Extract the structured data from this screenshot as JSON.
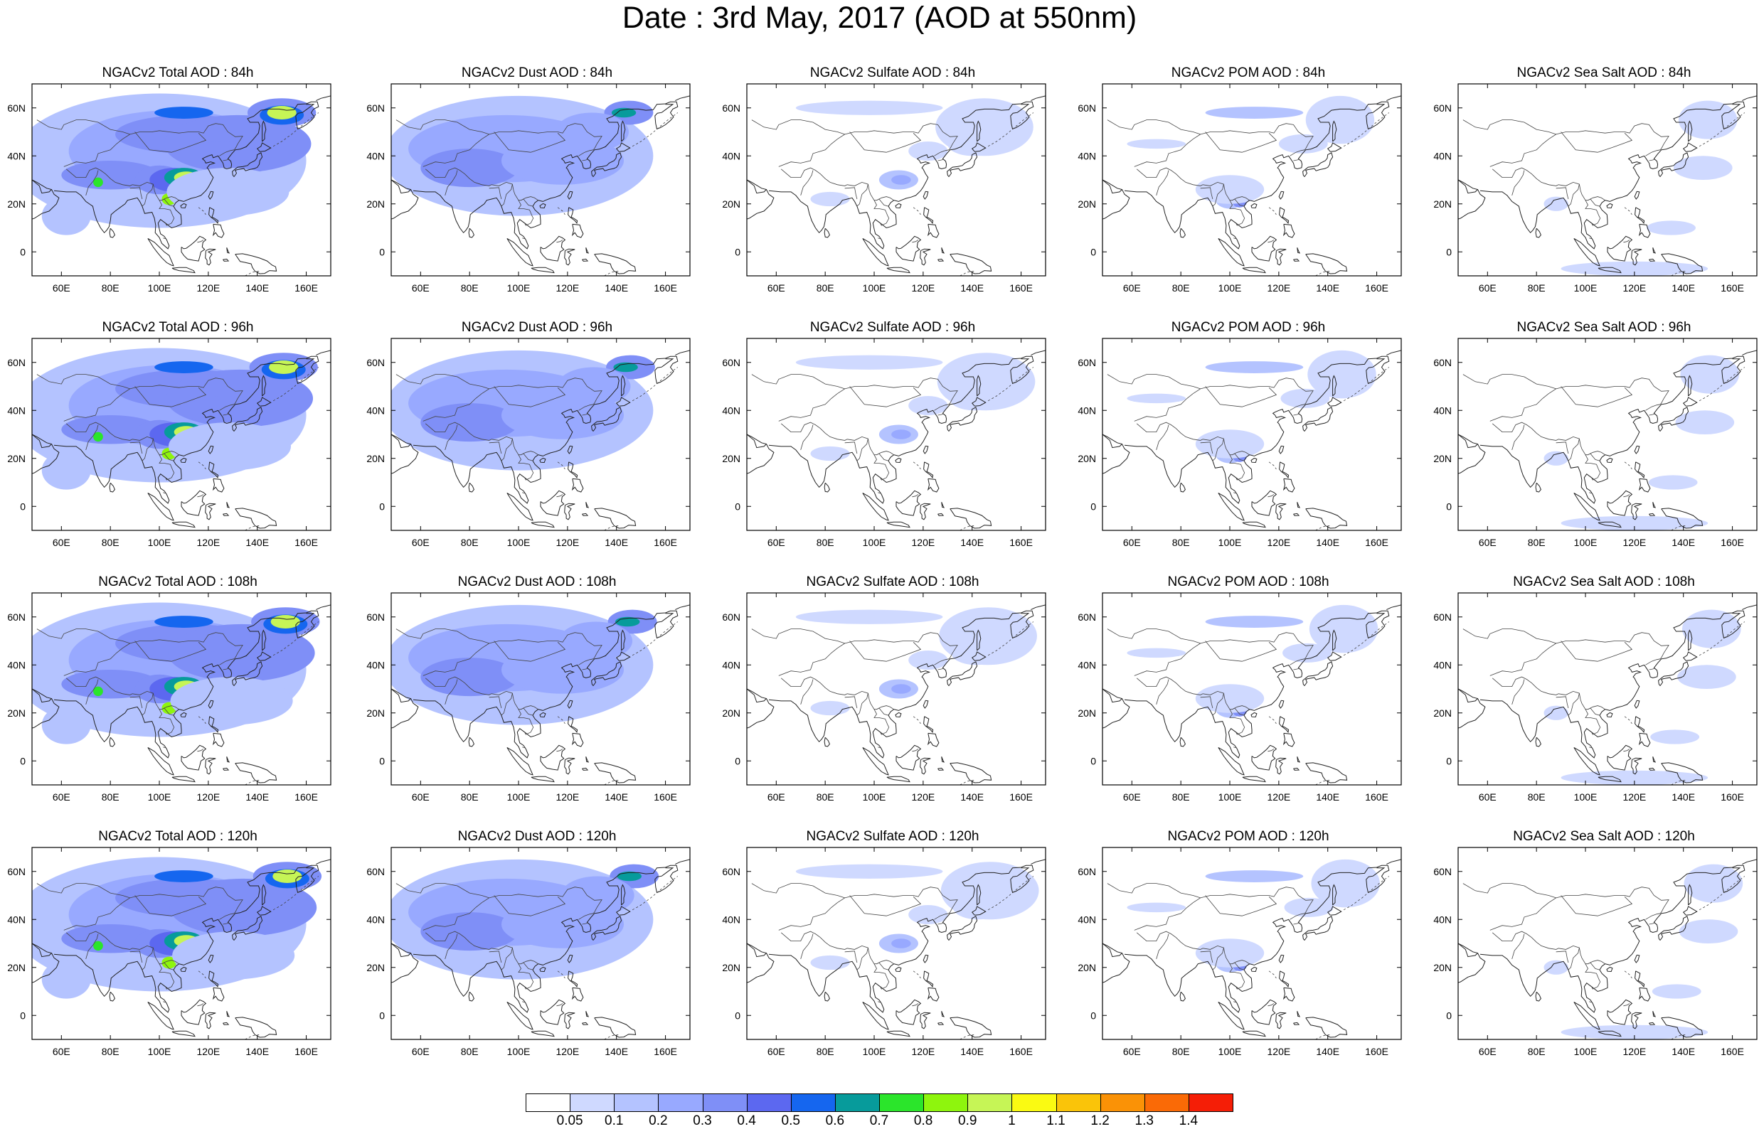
{
  "title": "Date : 3rd May, 2017 (AOD at 550nm)",
  "x_ticks": [
    "60E",
    "80E",
    "100E",
    "120E",
    "140E",
    "160E"
  ],
  "y_ticks": [
    "60N",
    "40N",
    "20N",
    "0"
  ],
  "panels": [
    [
      {
        "title": "NGACv2 Total AOD : 84h",
        "species": "total"
      },
      {
        "title": "NGACv2 Dust AOD : 84h",
        "species": "dust"
      },
      {
        "title": "NGACv2 Sulfate AOD : 84h",
        "species": "sulfate"
      },
      {
        "title": "NGACv2 POM AOD : 84h",
        "species": "pom"
      },
      {
        "title": "NGACv2 Sea Salt AOD : 84h",
        "species": "seasalt"
      }
    ],
    [
      {
        "title": "NGACv2 Total AOD : 96h",
        "species": "total"
      },
      {
        "title": "NGACv2 Dust AOD : 96h",
        "species": "dust"
      },
      {
        "title": "NGACv2 Sulfate AOD : 96h",
        "species": "sulfate"
      },
      {
        "title": "NGACv2 POM AOD : 96h",
        "species": "pom"
      },
      {
        "title": "NGACv2 Sea Salt AOD : 96h",
        "species": "seasalt"
      }
    ],
    [
      {
        "title": "NGACv2 Total AOD : 108h",
        "species": "total"
      },
      {
        "title": "NGACv2 Dust AOD : 108h",
        "species": "dust"
      },
      {
        "title": "NGACv2 Sulfate AOD : 108h",
        "species": "sulfate"
      },
      {
        "title": "NGACv2 POM AOD : 108h",
        "species": "pom"
      },
      {
        "title": "NGACv2 Sea Salt AOD : 108h",
        "species": "seasalt"
      }
    ],
    [
      {
        "title": "NGACv2 Total AOD : 120h",
        "species": "total"
      },
      {
        "title": "NGACv2 Dust AOD : 120h",
        "species": "dust"
      },
      {
        "title": "NGACv2 Sulfate AOD : 120h",
        "species": "sulfate"
      },
      {
        "title": "NGACv2 POM AOD : 120h",
        "species": "pom"
      },
      {
        "title": "NGACv2 Sea Salt  AOD : 120h",
        "species": "seasalt"
      }
    ]
  ],
  "colorbar": {
    "labels": [
      "0.05",
      "0.1",
      "0.2",
      "0.3",
      "0.4",
      "0.5",
      "0.6",
      "0.7",
      "0.8",
      "0.9",
      "1",
      "1.1",
      "1.2",
      "1.3",
      "1.4"
    ],
    "colors": [
      "#ffffff",
      "#cfd9ff",
      "#b4c3ff",
      "#98a9ff",
      "#7f8ff7",
      "#5c68f0",
      "#1566ef",
      "#079b9b",
      "#2be52b",
      "#8ef50d",
      "#c6f556",
      "#fafa12",
      "#fac409",
      "#fa9206",
      "#fa6a06",
      "#f51e06"
    ]
  }
}
